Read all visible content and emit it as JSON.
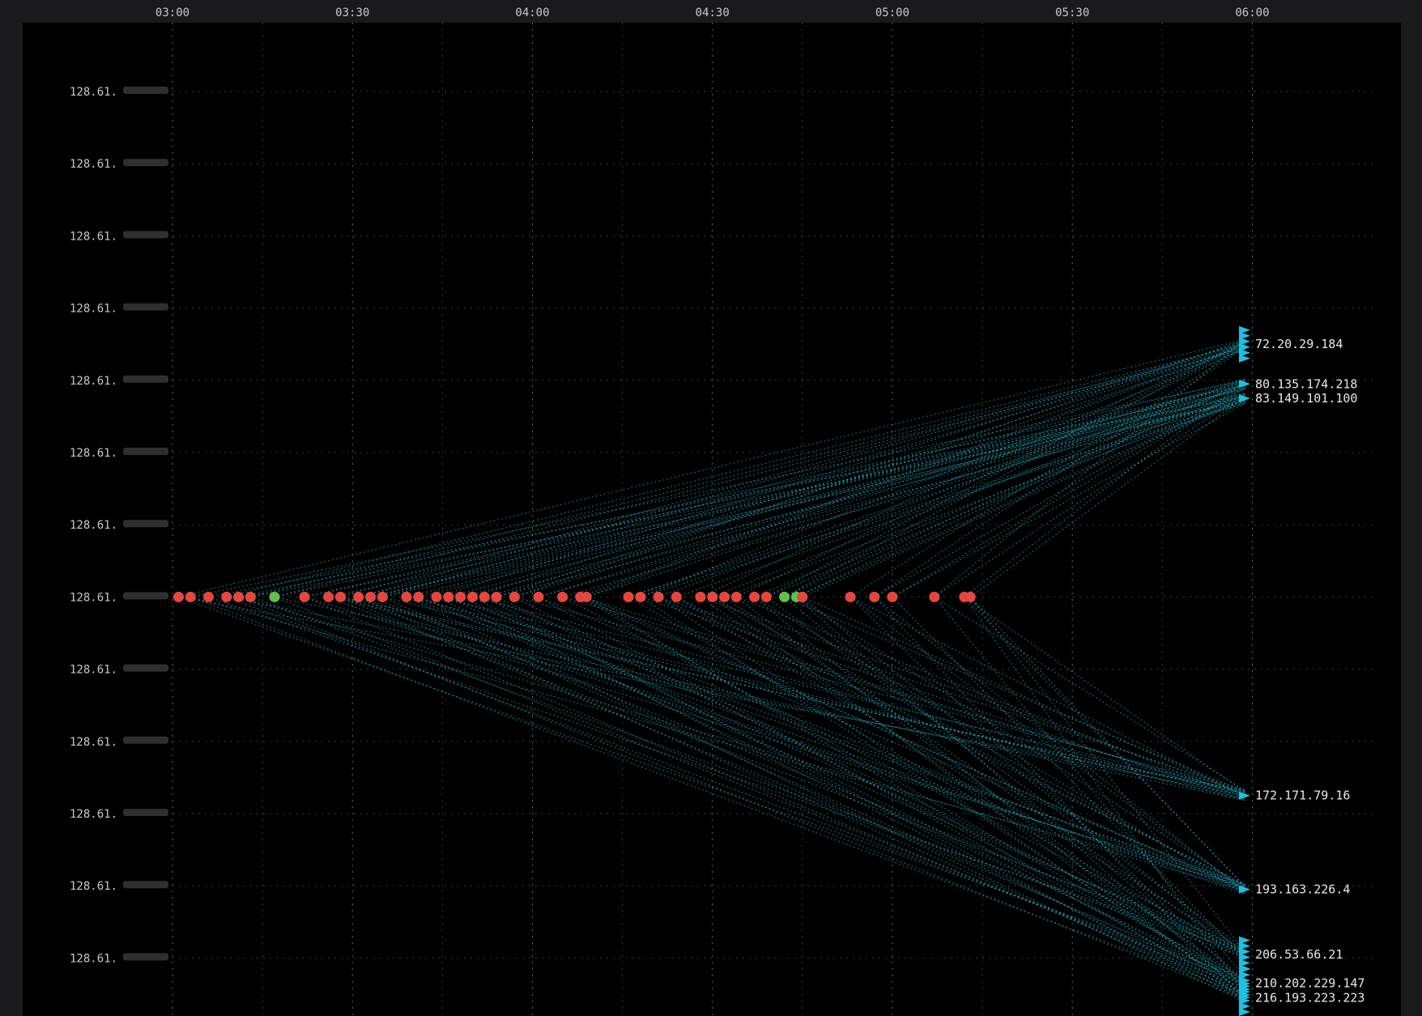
{
  "chart_data": {
    "type": "scatter",
    "title": "",
    "xlabel": "",
    "ylabel": "",
    "x_ticks": [
      "03:00",
      "03:30",
      "04:00",
      "04:30",
      "05:00",
      "05:30",
      "06:00"
    ],
    "x_range": [
      "03:00",
      "06:00"
    ],
    "y_ticks": [
      "128.61.",
      "128.61.",
      "128.61.",
      "128.61.",
      "128.61.",
      "128.61.",
      "128.61.",
      "128.61.",
      "128.61.",
      "128.61.",
      "128.61.",
      "128.61.",
      "128.61."
    ],
    "grid": true,
    "source_row": 7,
    "events": [
      {
        "t": "03:01",
        "status": "red"
      },
      {
        "t": "03:03",
        "status": "red"
      },
      {
        "t": "03:06",
        "status": "red"
      },
      {
        "t": "03:09",
        "status": "red"
      },
      {
        "t": "03:11",
        "status": "red"
      },
      {
        "t": "03:13",
        "status": "red"
      },
      {
        "t": "03:17",
        "status": "green"
      },
      {
        "t": "03:22",
        "status": "red"
      },
      {
        "t": "03:26",
        "status": "red"
      },
      {
        "t": "03:28",
        "status": "red"
      },
      {
        "t": "03:31",
        "status": "red"
      },
      {
        "t": "03:33",
        "status": "red"
      },
      {
        "t": "03:35",
        "status": "red"
      },
      {
        "t": "03:39",
        "status": "red"
      },
      {
        "t": "03:41",
        "status": "red"
      },
      {
        "t": "03:44",
        "status": "red"
      },
      {
        "t": "03:46",
        "status": "red"
      },
      {
        "t": "03:48",
        "status": "red"
      },
      {
        "t": "03:50",
        "status": "red"
      },
      {
        "t": "03:52",
        "status": "red"
      },
      {
        "t": "03:54",
        "status": "red"
      },
      {
        "t": "03:57",
        "status": "red"
      },
      {
        "t": "04:01",
        "status": "red"
      },
      {
        "t": "04:05",
        "status": "red"
      },
      {
        "t": "04:08",
        "status": "red"
      },
      {
        "t": "04:09",
        "status": "red"
      },
      {
        "t": "04:16",
        "status": "red"
      },
      {
        "t": "04:18",
        "status": "red"
      },
      {
        "t": "04:21",
        "status": "red"
      },
      {
        "t": "04:24",
        "status": "red"
      },
      {
        "t": "04:28",
        "status": "red"
      },
      {
        "t": "04:30",
        "status": "red"
      },
      {
        "t": "04:32",
        "status": "red"
      },
      {
        "t": "04:34",
        "status": "red"
      },
      {
        "t": "04:37",
        "status": "red"
      },
      {
        "t": "04:39",
        "status": "red"
      },
      {
        "t": "04:42",
        "status": "green"
      },
      {
        "t": "04:44",
        "status": "green"
      },
      {
        "t": "04:45",
        "status": "red"
      },
      {
        "t": "04:53",
        "status": "red"
      },
      {
        "t": "04:57",
        "status": "red"
      },
      {
        "t": "05:00",
        "status": "red"
      },
      {
        "t": "05:07",
        "status": "red"
      },
      {
        "t": "05:12",
        "status": "red"
      },
      {
        "t": "05:13",
        "status": "red"
      }
    ],
    "destinations": [
      {
        "label": "72.20.29.184",
        "row": 3.5
      },
      {
        "label": "80.135.174.218",
        "row": 4.05
      },
      {
        "label": "83.149.101.100",
        "row": 4.25
      },
      {
        "label": "172.171.79.16",
        "row": 9.75
      },
      {
        "label": "193.163.226.4",
        "row": 11.05
      },
      {
        "label": "206.53.66.21",
        "row": 11.95
      },
      {
        "label": "210.202.229.147",
        "row": 12.35
      },
      {
        "label": "216.193.223.223",
        "row": 12.55
      }
    ],
    "colors": {
      "background": "#000000",
      "grid": "#8a8a8a",
      "link": "#22b8cc",
      "arrow": "#1ec0e0",
      "event_red": "#e8453c",
      "event_green": "#5ec24a"
    }
  }
}
